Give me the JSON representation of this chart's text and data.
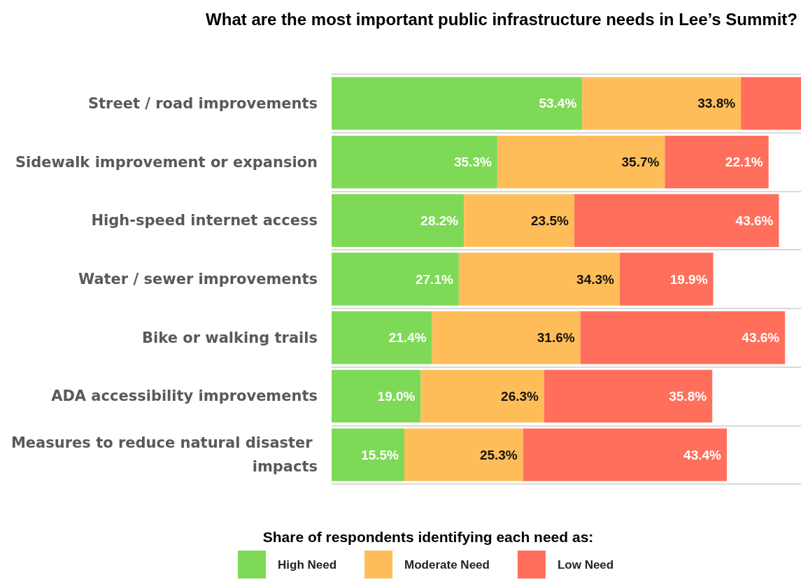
{
  "chart_data": {
    "type": "bar",
    "orientation": "horizontal",
    "stacked": true,
    "title": "What are the most important public infrastructure needs in Lee’s Summit?",
    "legend_title": "Share of respondents identifying each need as:",
    "legend": "bottom",
    "grid": "y",
    "categories": [
      "Street / road improvements",
      "Sidewalk improvement or expansion",
      "High-speed internet access",
      "Water / sewer improvements",
      "Bike or walking trails",
      "ADA accessibility improvements",
      "Measures to reduce natural disaster impacts"
    ],
    "series": [
      {
        "name": "High Need",
        "color": "#7ed957",
        "values": [
          53.4,
          35.3,
          28.2,
          27.1,
          21.4,
          19.0,
          15.5
        ],
        "value_labels": [
          "53.4%",
          "35.3%",
          "28.2%",
          "27.1%",
          "21.4%",
          "19.0%",
          "15.5%"
        ]
      },
      {
        "name": "Moderate Need",
        "color": "#ffbd59",
        "values": [
          33.8,
          35.7,
          23.5,
          34.3,
          31.6,
          26.3,
          25.3
        ],
        "value_labels": [
          "33.8%",
          "35.7%",
          "23.5%",
          "34.3%",
          "31.6%",
          "26.3%",
          "25.3%"
        ]
      },
      {
        "name": "Low Need",
        "color": "#ff6f5b",
        "values": [
          12.8,
          22.1,
          43.6,
          19.9,
          43.6,
          35.8,
          43.4
        ],
        "value_labels": [
          null,
          "22.1%",
          "43.6%",
          "19.9%",
          "43.6%",
          "35.8%",
          "43.4%"
        ]
      }
    ]
  }
}
